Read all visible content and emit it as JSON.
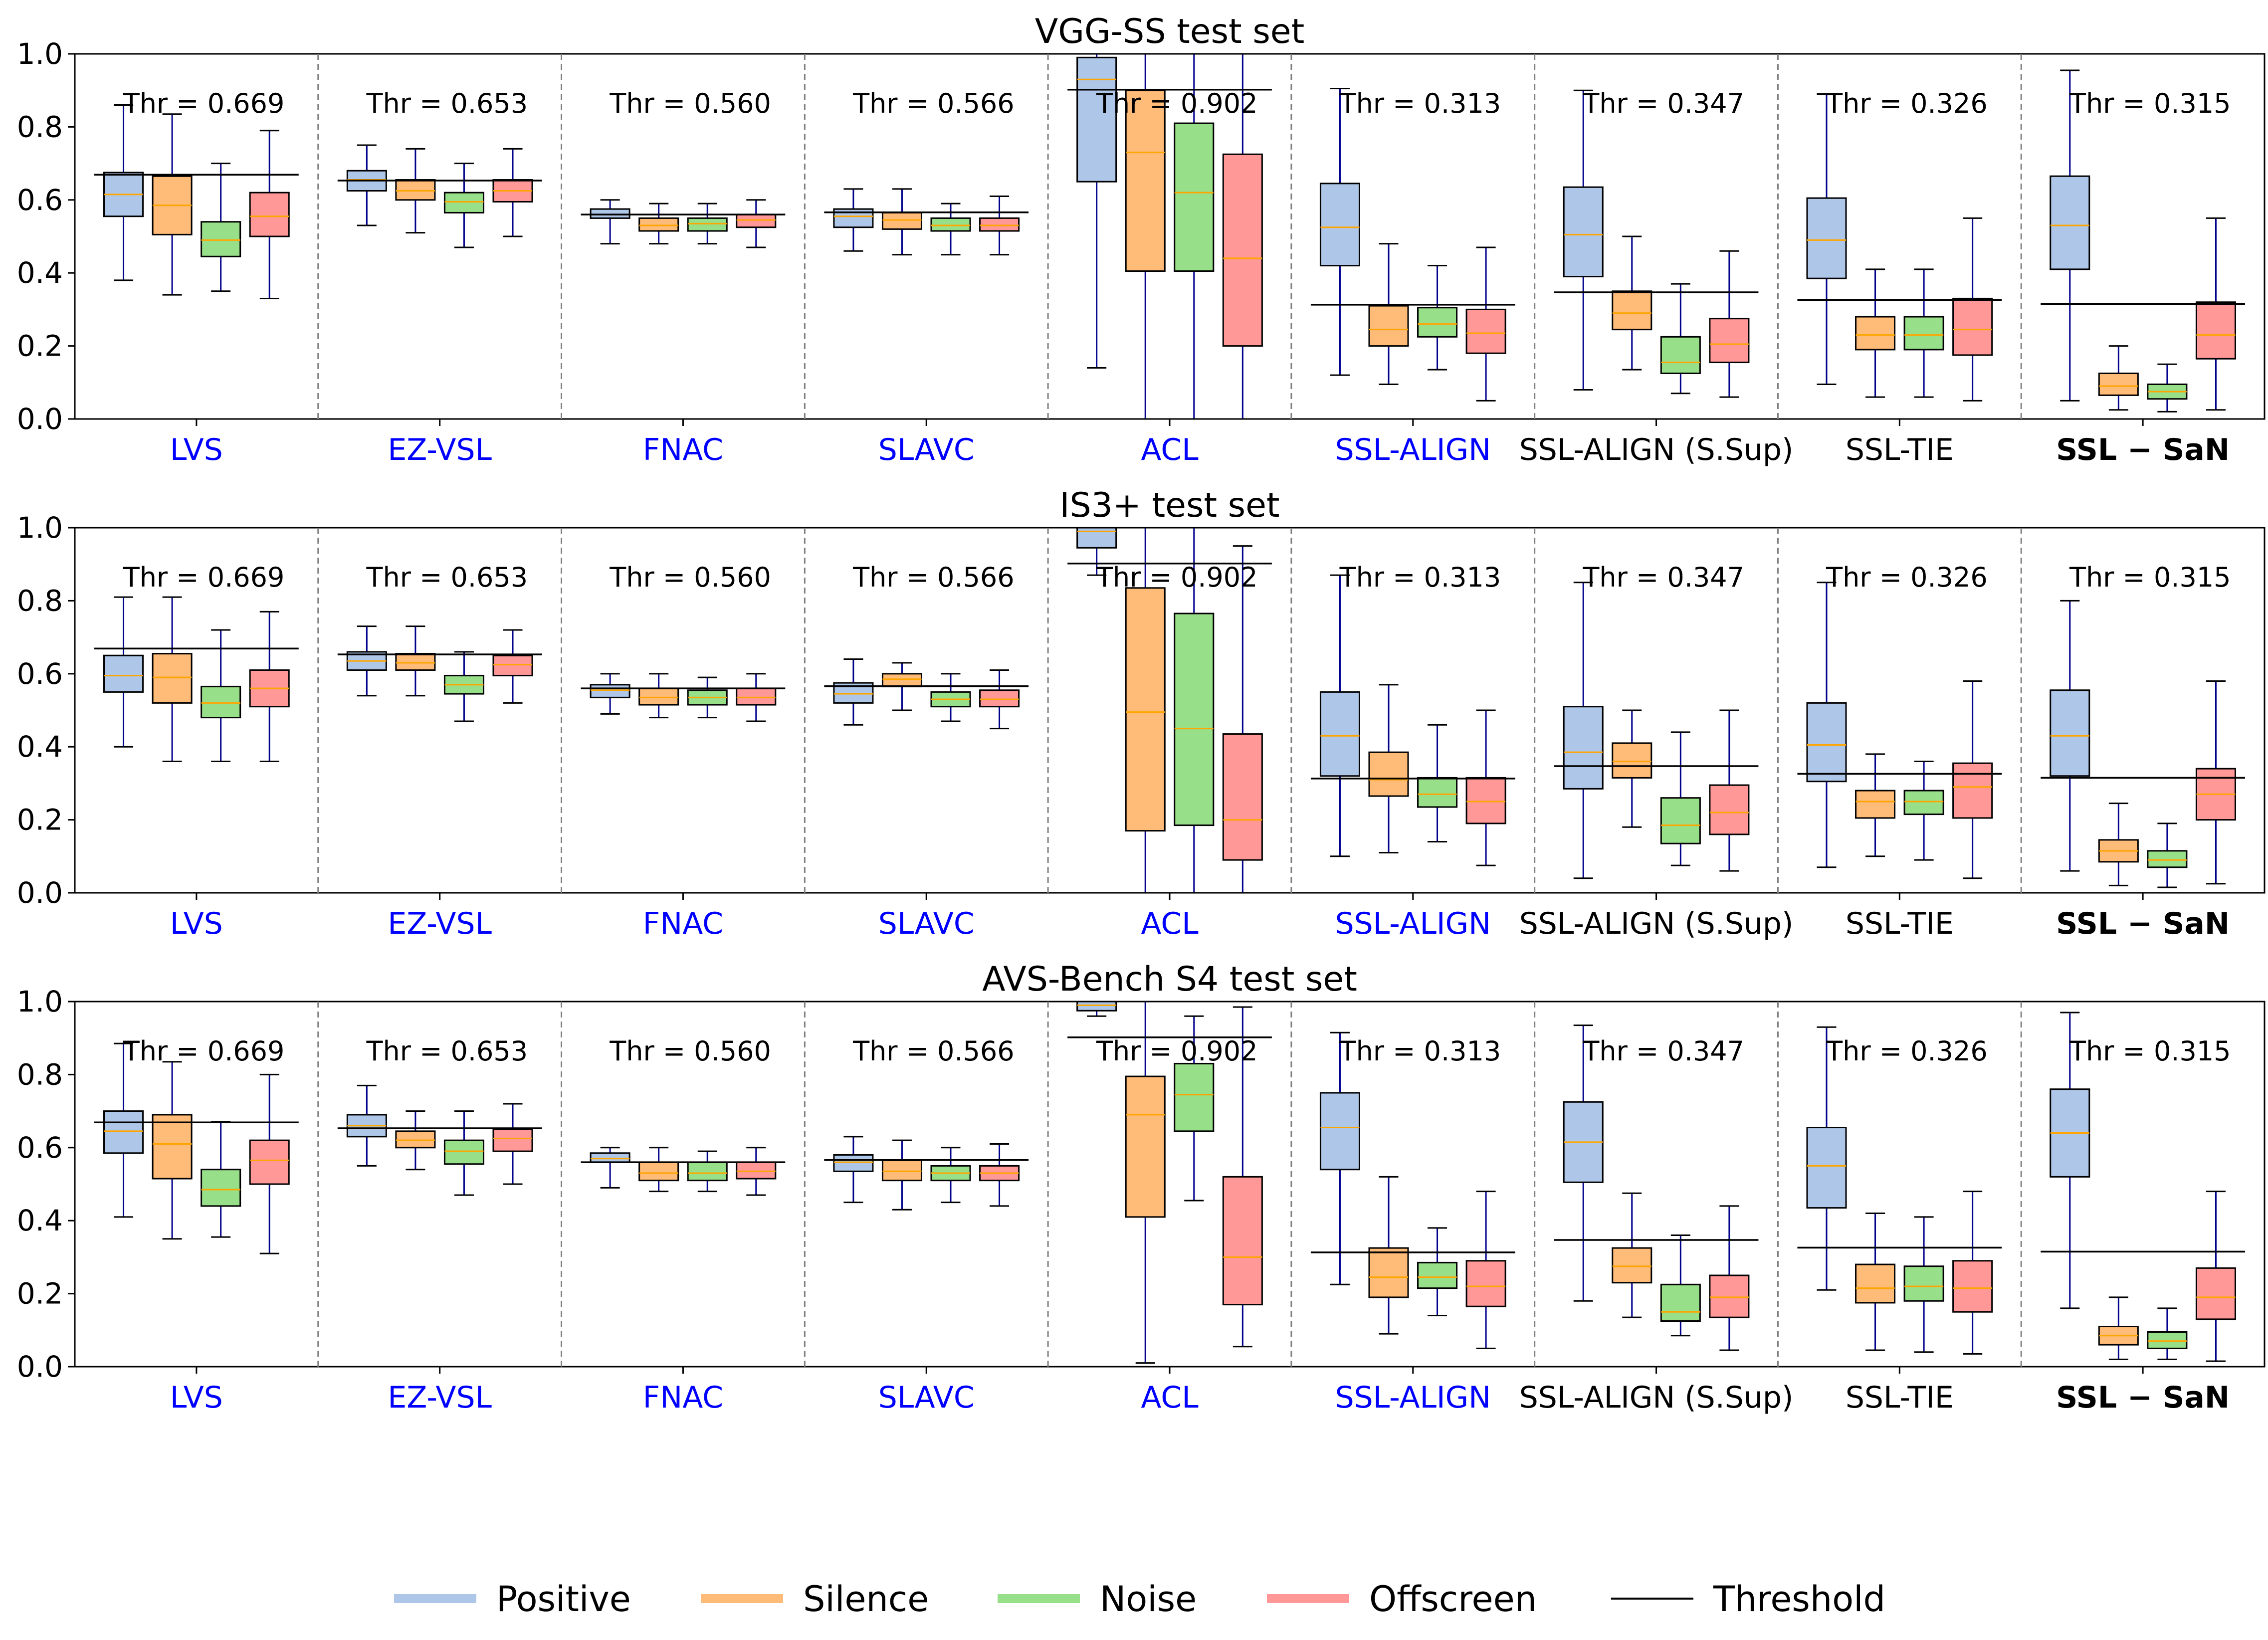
{
  "chart_data": {
    "type": "boxplot",
    "ylim": [
      0,
      1
    ],
    "yticks": [
      "0.0",
      "0.2",
      "0.4",
      "0.6",
      "0.8",
      "1.0"
    ],
    "groups": [
      "Positive",
      "Silence",
      "Noise",
      "Offscreen"
    ],
    "colors": {
      "Positive": "#aec7e8",
      "Silence": "#ffbb78",
      "Noise": "#98df8a",
      "Offscreen": "#ff9896",
      "median": "#ffa500",
      "whisker": "#00008b",
      "threshold": "#000000",
      "separator": "#808080",
      "label_blue": "#0000ff",
      "label_black": "#000000"
    },
    "methods": [
      {
        "name": "LVS",
        "color": "blue",
        "bold": false,
        "threshold": 0.669,
        "thr_label": "Thr = 0.669"
      },
      {
        "name": "EZ-VSL",
        "color": "blue",
        "bold": false,
        "threshold": 0.653,
        "thr_label": "Thr = 0.653"
      },
      {
        "name": "FNAC",
        "color": "blue",
        "bold": false,
        "threshold": 0.56,
        "thr_label": "Thr = 0.560"
      },
      {
        "name": "SLAVC",
        "color": "blue",
        "bold": false,
        "threshold": 0.566,
        "thr_label": "Thr = 0.566"
      },
      {
        "name": "ACL",
        "color": "blue",
        "bold": false,
        "threshold": 0.902,
        "thr_label": "Thr = 0.902"
      },
      {
        "name": "SSL-ALIGN",
        "color": "blue",
        "bold": false,
        "threshold": 0.313,
        "thr_label": "Thr = 0.313"
      },
      {
        "name": "SSL-ALIGN (S.Sup)",
        "color": "black",
        "bold": false,
        "threshold": 0.347,
        "thr_label": "Thr = 0.347"
      },
      {
        "name": "SSL-TIE",
        "color": "black",
        "bold": false,
        "threshold": 0.326,
        "thr_label": "Thr = 0.326"
      },
      {
        "name": "SSL − SaN",
        "color": "black",
        "bold": true,
        "threshold": 0.315,
        "thr_label": "Thr = 0.315"
      }
    ],
    "panels": [
      {
        "title": "VGG-SS test set",
        "boxes": [
          [
            [
              0.38,
              0.555,
              0.615,
              0.675,
              0.86
            ],
            [
              0.34,
              0.505,
              0.585,
              0.665,
              0.835
            ],
            [
              0.35,
              0.445,
              0.49,
              0.54,
              0.7
            ],
            [
              0.33,
              0.5,
              0.555,
              0.62,
              0.79
            ]
          ],
          [
            [
              0.53,
              0.625,
              0.655,
              0.68,
              0.75
            ],
            [
              0.51,
              0.6,
              0.625,
              0.655,
              0.74
            ],
            [
              0.47,
              0.565,
              0.595,
              0.62,
              0.7
            ],
            [
              0.5,
              0.595,
              0.625,
              0.655,
              0.74
            ]
          ],
          [
            [
              0.48,
              0.55,
              0.56,
              0.575,
              0.6
            ],
            [
              0.48,
              0.515,
              0.53,
              0.55,
              0.59
            ],
            [
              0.48,
              0.515,
              0.535,
              0.55,
              0.59
            ],
            [
              0.47,
              0.525,
              0.545,
              0.56,
              0.6
            ]
          ],
          [
            [
              0.46,
              0.525,
              0.555,
              0.575,
              0.63
            ],
            [
              0.45,
              0.52,
              0.545,
              0.565,
              0.63
            ],
            [
              0.45,
              0.515,
              0.53,
              0.55,
              0.59
            ],
            [
              0.45,
              0.515,
              0.53,
              0.55,
              0.61
            ]
          ],
          [
            [
              0.14,
              0.65,
              0.93,
              0.99,
              1.0
            ],
            [
              0.0,
              0.405,
              0.73,
              0.9,
              1.0
            ],
            [
              0.0,
              0.405,
              0.62,
              0.81,
              1.0
            ],
            [
              0.0,
              0.2,
              0.44,
              0.725,
              1.0
            ]
          ],
          [
            [
              0.12,
              0.42,
              0.525,
              0.645,
              0.905
            ],
            [
              0.095,
              0.2,
              0.245,
              0.31,
              0.48
            ],
            [
              0.135,
              0.225,
              0.26,
              0.305,
              0.42
            ],
            [
              0.05,
              0.18,
              0.235,
              0.3,
              0.47
            ]
          ],
          [
            [
              0.08,
              0.39,
              0.505,
              0.635,
              0.9
            ],
            [
              0.135,
              0.245,
              0.29,
              0.35,
              0.5
            ],
            [
              0.07,
              0.125,
              0.155,
              0.225,
              0.37
            ],
            [
              0.06,
              0.155,
              0.205,
              0.275,
              0.46
            ]
          ],
          [
            [
              0.095,
              0.385,
              0.49,
              0.605,
              0.89
            ],
            [
              0.06,
              0.19,
              0.23,
              0.28,
              0.41
            ],
            [
              0.06,
              0.19,
              0.23,
              0.28,
              0.41
            ],
            [
              0.05,
              0.175,
              0.245,
              0.33,
              0.55
            ]
          ],
          [
            [
              0.05,
              0.41,
              0.53,
              0.665,
              0.955
            ],
            [
              0.025,
              0.065,
              0.09,
              0.125,
              0.2
            ],
            [
              0.02,
              0.055,
              0.075,
              0.095,
              0.15
            ],
            [
              0.025,
              0.165,
              0.23,
              0.32,
              0.55
            ]
          ]
        ]
      },
      {
        "title": "IS3+ test set",
        "boxes": [
          [
            [
              0.4,
              0.55,
              0.595,
              0.65,
              0.81
            ],
            [
              0.36,
              0.52,
              0.59,
              0.655,
              0.81
            ],
            [
              0.36,
              0.48,
              0.52,
              0.565,
              0.72
            ],
            [
              0.36,
              0.51,
              0.56,
              0.61,
              0.77
            ]
          ],
          [
            [
              0.54,
              0.61,
              0.635,
              0.66,
              0.73
            ],
            [
              0.54,
              0.61,
              0.63,
              0.655,
              0.73
            ],
            [
              0.47,
              0.545,
              0.57,
              0.595,
              0.66
            ],
            [
              0.52,
              0.595,
              0.625,
              0.65,
              0.72
            ]
          ],
          [
            [
              0.49,
              0.535,
              0.555,
              0.57,
              0.6
            ],
            [
              0.48,
              0.515,
              0.535,
              0.56,
              0.6
            ],
            [
              0.48,
              0.515,
              0.535,
              0.555,
              0.59
            ],
            [
              0.47,
              0.515,
              0.535,
              0.56,
              0.6
            ]
          ],
          [
            [
              0.46,
              0.52,
              0.545,
              0.575,
              0.64
            ],
            [
              0.5,
              0.565,
              0.585,
              0.6,
              0.63
            ],
            [
              0.47,
              0.51,
              0.53,
              0.55,
              0.6
            ],
            [
              0.45,
              0.51,
              0.53,
              0.555,
              0.61
            ]
          ],
          [
            [
              0.87,
              0.945,
              0.99,
              1.0,
              1.0
            ],
            [
              0.0,
              0.17,
              0.495,
              0.835,
              1.0
            ],
            [
              0.0,
              0.185,
              0.45,
              0.765,
              1.0
            ],
            [
              0.0,
              0.09,
              0.2,
              0.435,
              0.95
            ]
          ],
          [
            [
              0.1,
              0.32,
              0.43,
              0.55,
              0.87
            ],
            [
              0.11,
              0.265,
              0.31,
              0.385,
              0.57
            ],
            [
              0.14,
              0.235,
              0.27,
              0.315,
              0.46
            ],
            [
              0.075,
              0.19,
              0.25,
              0.315,
              0.5
            ]
          ],
          [
            [
              0.04,
              0.285,
              0.385,
              0.51,
              0.85
            ],
            [
              0.18,
              0.315,
              0.36,
              0.41,
              0.5
            ],
            [
              0.075,
              0.135,
              0.185,
              0.26,
              0.44
            ],
            [
              0.06,
              0.16,
              0.22,
              0.295,
              0.5
            ]
          ],
          [
            [
              0.07,
              0.305,
              0.405,
              0.52,
              0.85
            ],
            [
              0.1,
              0.205,
              0.25,
              0.28,
              0.38
            ],
            [
              0.09,
              0.215,
              0.25,
              0.28,
              0.36
            ],
            [
              0.04,
              0.205,
              0.29,
              0.355,
              0.58
            ]
          ],
          [
            [
              0.06,
              0.32,
              0.43,
              0.555,
              0.8
            ],
            [
              0.02,
              0.085,
              0.115,
              0.145,
              0.245
            ],
            [
              0.015,
              0.07,
              0.09,
              0.115,
              0.19
            ],
            [
              0.025,
              0.2,
              0.27,
              0.34,
              0.58
            ]
          ]
        ]
      },
      {
        "title": "AVS-Bench S4 test set",
        "boxes": [
          [
            [
              0.41,
              0.585,
              0.645,
              0.7,
              0.885
            ],
            [
              0.35,
              0.515,
              0.61,
              0.69,
              0.835
            ],
            [
              0.355,
              0.44,
              0.485,
              0.54,
              0.67
            ],
            [
              0.31,
              0.5,
              0.565,
              0.62,
              0.8
            ]
          ],
          [
            [
              0.55,
              0.63,
              0.66,
              0.69,
              0.77
            ],
            [
              0.54,
              0.6,
              0.62,
              0.645,
              0.7
            ],
            [
              0.47,
              0.555,
              0.59,
              0.62,
              0.7
            ],
            [
              0.5,
              0.59,
              0.625,
              0.65,
              0.72
            ]
          ],
          [
            [
              0.49,
              0.56,
              0.57,
              0.585,
              0.6
            ],
            [
              0.48,
              0.51,
              0.53,
              0.56,
              0.6
            ],
            [
              0.48,
              0.51,
              0.53,
              0.56,
              0.59
            ],
            [
              0.47,
              0.515,
              0.535,
              0.56,
              0.6
            ]
          ],
          [
            [
              0.45,
              0.535,
              0.56,
              0.58,
              0.63
            ],
            [
              0.43,
              0.51,
              0.535,
              0.565,
              0.62
            ],
            [
              0.45,
              0.51,
              0.53,
              0.55,
              0.6
            ],
            [
              0.44,
              0.51,
              0.53,
              0.55,
              0.61
            ]
          ],
          [
            [
              0.96,
              0.975,
              0.99,
              1.0,
              1.0
            ],
            [
              0.01,
              0.41,
              0.69,
              0.795,
              1.0
            ],
            [
              0.455,
              0.645,
              0.745,
              0.83,
              0.96
            ],
            [
              0.055,
              0.17,
              0.3,
              0.52,
              0.985
            ]
          ],
          [
            [
              0.225,
              0.54,
              0.655,
              0.75,
              0.915
            ],
            [
              0.09,
              0.19,
              0.245,
              0.325,
              0.52
            ],
            [
              0.14,
              0.215,
              0.245,
              0.285,
              0.38
            ],
            [
              0.05,
              0.165,
              0.22,
              0.29,
              0.48
            ]
          ],
          [
            [
              0.18,
              0.505,
              0.615,
              0.725,
              0.935
            ],
            [
              0.135,
              0.23,
              0.275,
              0.325,
              0.475
            ],
            [
              0.085,
              0.125,
              0.15,
              0.225,
              0.36
            ],
            [
              0.045,
              0.135,
              0.19,
              0.25,
              0.44
            ]
          ],
          [
            [
              0.21,
              0.435,
              0.55,
              0.655,
              0.93
            ],
            [
              0.045,
              0.175,
              0.215,
              0.28,
              0.42
            ],
            [
              0.04,
              0.18,
              0.22,
              0.275,
              0.41
            ],
            [
              0.035,
              0.15,
              0.215,
              0.29,
              0.48
            ]
          ],
          [
            [
              0.16,
              0.52,
              0.64,
              0.76,
              0.97
            ],
            [
              0.02,
              0.06,
              0.085,
              0.11,
              0.19
            ],
            [
              0.02,
              0.05,
              0.07,
              0.095,
              0.16
            ],
            [
              0.015,
              0.13,
              0.19,
              0.27,
              0.48
            ]
          ]
        ]
      }
    ],
    "legend": [
      {
        "label": "Positive",
        "color": "#aec7e8",
        "kind": "thick"
      },
      {
        "label": "Silence",
        "color": "#ffbb78",
        "kind": "thick"
      },
      {
        "label": "Noise",
        "color": "#98df8a",
        "kind": "thick"
      },
      {
        "label": "Offscreen",
        "color": "#ff9896",
        "kind": "thick"
      },
      {
        "label": "Threshold",
        "color": "#000000",
        "kind": "thin"
      }
    ]
  }
}
